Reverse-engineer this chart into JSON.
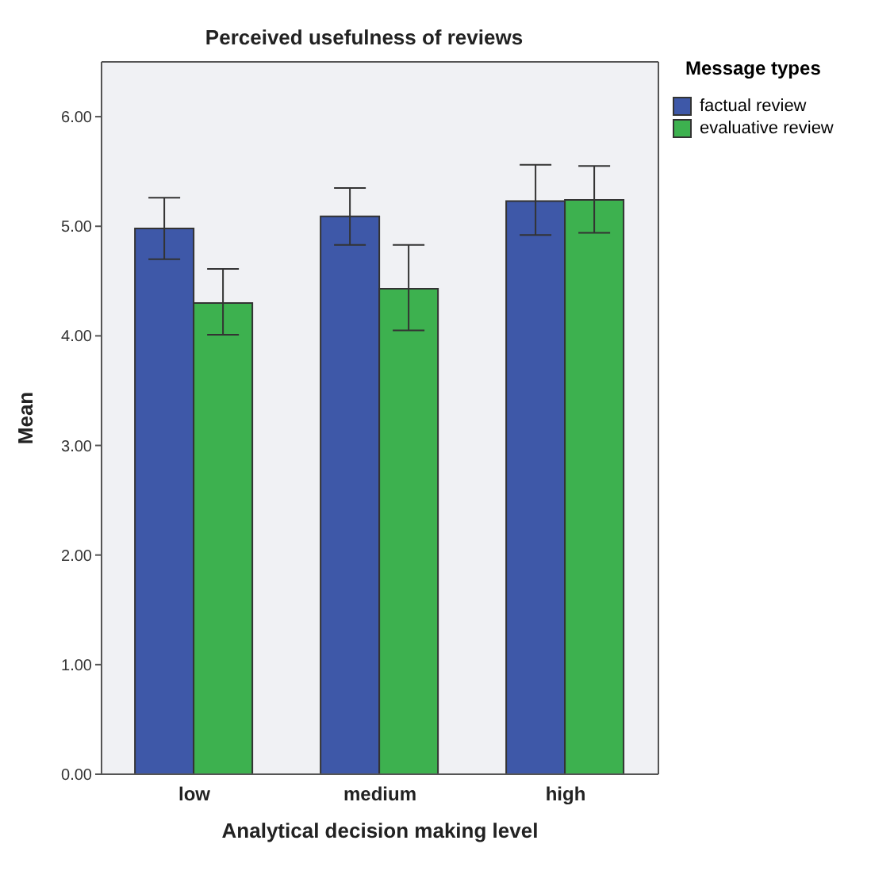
{
  "chart_data": {
    "type": "bar",
    "title": "Perceived usefulness of reviews",
    "xlabel": "Analytical decision making level",
    "ylabel": "Mean",
    "legend_title": "Message types",
    "categories": [
      "low",
      "medium",
      "high"
    ],
    "series": [
      {
        "name": "factual review",
        "color": "#3e58a8",
        "values": [
          4.98,
          5.09,
          5.23
        ],
        "errors": [
          [
            4.7,
            5.26
          ],
          [
            4.83,
            5.35
          ],
          [
            4.92,
            5.56
          ]
        ]
      },
      {
        "name": "evaluative review",
        "color": "#3db14f",
        "values": [
          4.3,
          4.43,
          5.24
        ],
        "errors": [
          [
            4.01,
            4.61
          ],
          [
            4.05,
            4.83
          ],
          [
            4.94,
            5.55
          ]
        ]
      }
    ],
    "ylim": [
      0,
      6.5
    ],
    "yticks": [
      {
        "value": 0,
        "label": "0.00"
      },
      {
        "value": 1,
        "label": "1.00"
      },
      {
        "value": 2,
        "label": "2.00"
      },
      {
        "value": 3,
        "label": "3.00"
      },
      {
        "value": 4,
        "label": "4.00"
      },
      {
        "value": 5,
        "label": "5.00"
      },
      {
        "value": 6,
        "label": "6.00"
      }
    ],
    "legend": "top right"
  }
}
